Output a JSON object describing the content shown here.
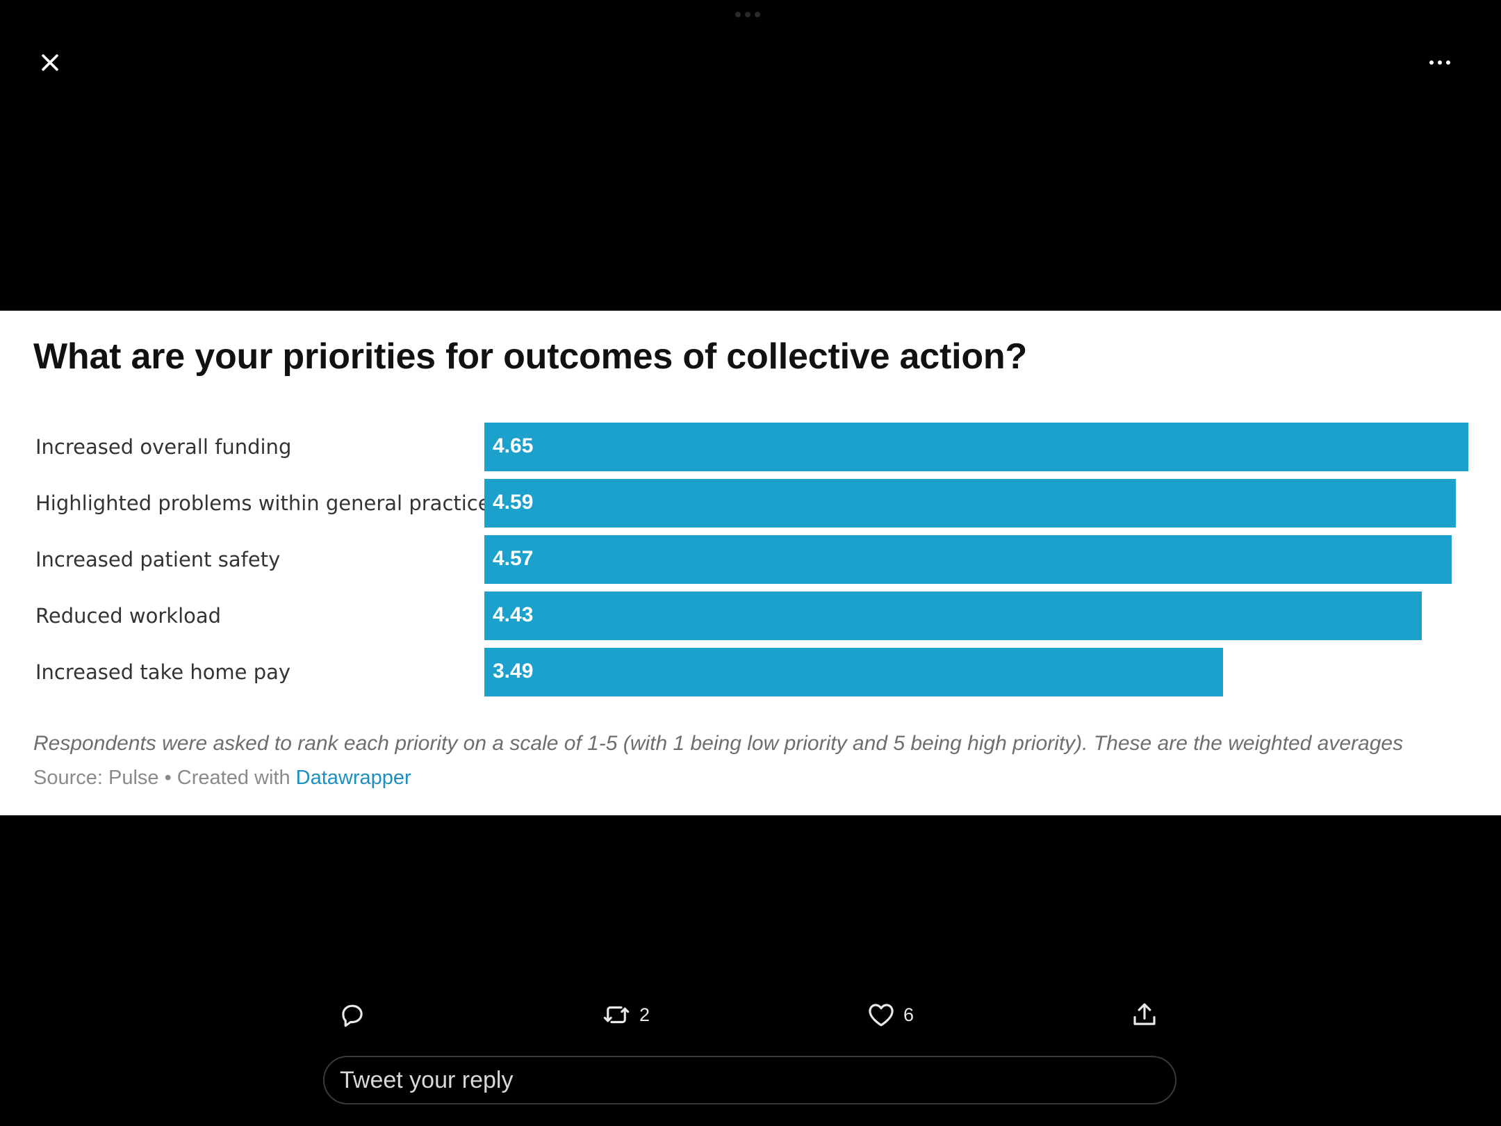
{
  "viewer": {
    "close_icon": "close-icon",
    "more_icon": "more-horizontal-icon"
  },
  "chart_card": {
    "title": "What are your priorities for outcomes of collective action?",
    "notes": "Respondents were asked to rank each priority on a scale of 1-5 (with 1 being low priority and 5 being high priority). These are the weighted averages",
    "source_prefix": "Source: Pulse  • Created with ",
    "source_link": "Datawrapper",
    "bar_color": "#1ca0cc",
    "link_color": "#1b8fc0"
  },
  "chart_data": {
    "type": "bar",
    "orientation": "horizontal",
    "title": "What are your priorities for outcomes of collective action?",
    "categories": [
      "Increased overall funding",
      "Highlighted problems within general practice",
      "Increased patient safety",
      "Reduced workload",
      "Increased take home pay"
    ],
    "values": [
      4.65,
      4.59,
      4.57,
      4.43,
      3.49
    ],
    "value_labels": [
      "4.65",
      "4.59",
      "4.57",
      "4.43",
      "3.49"
    ],
    "xlim": [
      0,
      4.65
    ],
    "grid": false,
    "legend": "none"
  },
  "actions": {
    "reply_icon": "reply-icon",
    "retweet_icon": "retweet-icon",
    "retweet_count": "2",
    "like_icon": "heart-icon",
    "like_count": "6",
    "share_icon": "share-icon"
  },
  "reply_box": {
    "placeholder": "Tweet your reply"
  }
}
